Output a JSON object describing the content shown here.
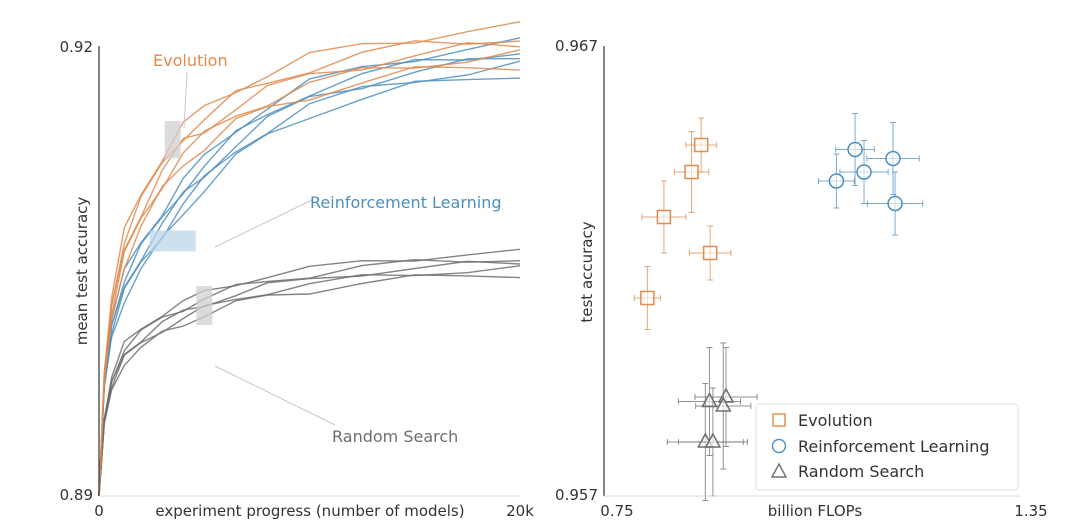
{
  "colors": {
    "evolution": "#e08a4e",
    "rl": "#4d8fc1",
    "random": "#6e6e6e",
    "band": "#c8c8c8",
    "axis": "#333333"
  },
  "chart_data": [
    {
      "type": "line",
      "xlabel": "experiment progress (number of models)",
      "ylabel": "mean test accuracy",
      "x_tick_labels": [
        "0",
        "20k"
      ],
      "y_tick_labels": [
        "0.89",
        "0.92"
      ],
      "xlim": [
        0,
        20000
      ],
      "ylim": [
        0.89,
        0.92
      ],
      "annotations": {
        "evolution": "Evolution",
        "rl": "Reinforcement Learning",
        "random": "Random Search"
      },
      "series": [
        {
          "name": "Evolution",
          "color": "#e08a4e",
          "points": [
            [
              0,
              0.89
            ],
            [
              250,
              0.898
            ],
            [
              600,
              0.9025
            ],
            [
              1200,
              0.9065
            ],
            [
              2000,
              0.909
            ],
            [
              3000,
              0.9115
            ],
            [
              4000,
              0.9135
            ],
            [
              5000,
              0.9145
            ],
            [
              6500,
              0.916
            ],
            [
              8000,
              0.917
            ],
            [
              10000,
              0.918
            ],
            [
              12500,
              0.9188
            ],
            [
              15000,
              0.9194
            ],
            [
              17500,
              0.9198
            ],
            [
              20000,
              0.92
            ]
          ],
          "runs": 5,
          "spread": 0.0012
        },
        {
          "name": "Reinforcement Learning",
          "color": "#4d8fc1",
          "points": [
            [
              0,
              0.89
            ],
            [
              250,
              0.8975
            ],
            [
              600,
              0.9012
            ],
            [
              1200,
              0.904
            ],
            [
              2000,
              0.906
            ],
            [
              3000,
              0.908
            ],
            [
              4000,
              0.91
            ],
            [
              5000,
              0.9115
            ],
            [
              6500,
              0.9135
            ],
            [
              8000,
              0.915
            ],
            [
              10000,
              0.9165
            ],
            [
              12500,
              0.9175
            ],
            [
              15000,
              0.9183
            ],
            [
              17500,
              0.9188
            ],
            [
              20000,
              0.9192
            ]
          ],
          "runs": 5,
          "spread": 0.001
        },
        {
          "name": "Random Search",
          "color": "#6e6e6e",
          "points": [
            [
              0,
              0.89
            ],
            [
              250,
              0.895
            ],
            [
              600,
              0.8975
            ],
            [
              1200,
              0.8995
            ],
            [
              2000,
              0.9005
            ],
            [
              3000,
              0.9015
            ],
            [
              4000,
              0.9022
            ],
            [
              5000,
              0.9028
            ],
            [
              6500,
              0.9035
            ],
            [
              8000,
              0.904
            ],
            [
              10000,
              0.9044
            ],
            [
              12500,
              0.9049
            ],
            [
              15000,
              0.9052
            ],
            [
              17500,
              0.9054
            ],
            [
              20000,
              0.9055
            ]
          ],
          "runs": 5,
          "spread": 0.0007
        }
      ],
      "bands": [
        {
          "series": "Evolution",
          "x": 3500,
          "y_low": 0.9125,
          "y_high": 0.915
        },
        {
          "series": "Reinforcement Learning",
          "x": 3500,
          "y_low": 0.9063,
          "y_high": 0.9077
        },
        {
          "series": "Random Search",
          "x": 5000,
          "y_low": 0.9014,
          "y_high": 0.904
        }
      ]
    },
    {
      "type": "scatter",
      "xlabel": "billion FLOPs",
      "ylabel": "test accuracy",
      "x_tick_labels": [
        "0.75",
        "1.35"
      ],
      "y_tick_labels": [
        "0.957",
        "0.967"
      ],
      "xlim": [
        0.75,
        1.35
      ],
      "ylim": [
        0.957,
        0.967
      ],
      "legend": {
        "position": "lower right",
        "entries": [
          "Evolution",
          "Reinforcement Learning",
          "Random Search"
        ]
      },
      "series": [
        {
          "name": "Evolution",
          "marker": "square",
          "color": "#e08a4e",
          "points": [
            {
              "x": 0.858,
              "y": 0.9642,
              "xerr": 0.025,
              "yerr": 0.0009
            },
            {
              "x": 0.872,
              "y": 0.9648,
              "xerr": 0.022,
              "yerr": 0.0006
            },
            {
              "x": 0.818,
              "y": 0.9632,
              "xerr": 0.032,
              "yerr": 0.0008
            },
            {
              "x": 0.794,
              "y": 0.9614,
              "xerr": 0.019,
              "yerr": 0.0007
            },
            {
              "x": 0.885,
              "y": 0.9624,
              "xerr": 0.03,
              "yerr": 0.0006
            }
          ]
        },
        {
          "name": "Reinforcement Learning",
          "marker": "circle",
          "color": "#4d8fc1",
          "points": [
            {
              "x": 1.095,
              "y": 0.9647,
              "xerr": 0.028,
              "yerr": 0.0008
            },
            {
              "x": 1.108,
              "y": 0.9642,
              "xerr": 0.035,
              "yerr": 0.0007
            },
            {
              "x": 1.15,
              "y": 0.9645,
              "xerr": 0.038,
              "yerr": 0.0008
            },
            {
              "x": 1.068,
              "y": 0.964,
              "xerr": 0.026,
              "yerr": 0.0006
            },
            {
              "x": 1.153,
              "y": 0.9635,
              "xerr": 0.04,
              "yerr": 0.0007
            }
          ]
        },
        {
          "name": "Random Search",
          "marker": "triangle",
          "color": "#6e6e6e",
          "points": [
            {
              "x": 0.908,
              "y": 0.9592,
              "xerr": 0.045,
              "yerr": 0.0011
            },
            {
              "x": 0.884,
              "y": 0.9591,
              "xerr": 0.045,
              "yerr": 0.0012
            },
            {
              "x": 0.904,
              "y": 0.959,
              "xerr": 0.04,
              "yerr": 0.0014
            },
            {
              "x": 0.878,
              "y": 0.9582,
              "xerr": 0.055,
              "yerr": 0.0013
            },
            {
              "x": 0.889,
              "y": 0.9582,
              "xerr": 0.05,
              "yerr": 0.0012
            }
          ]
        }
      ]
    }
  ]
}
